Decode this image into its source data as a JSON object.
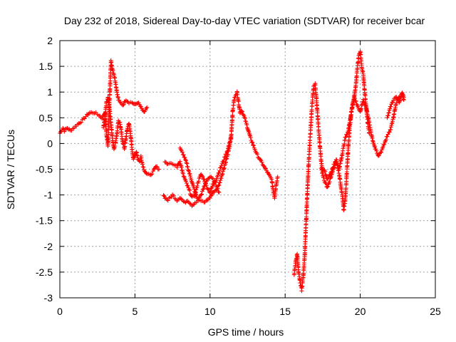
{
  "chart_data": {
    "type": "scatter",
    "title": "Day 232 of 2018, Sidereal Day-to-day VTEC variation (SDTVAR) for receiver bcar",
    "xlabel": "GPS time / hours",
    "ylabel": "SDTVAR / TECUs",
    "xlim": [
      0,
      25
    ],
    "ylim": [
      -3,
      2
    ],
    "xticks": [
      "0",
      "5",
      "10",
      "15",
      "20",
      "25"
    ],
    "yticks": [
      "2",
      "1.5",
      "1",
      "0.5",
      "0",
      "-0.5",
      "-1",
      "-1.5",
      "-2",
      "-2.5",
      "-3"
    ],
    "grid": true,
    "marker": "plus",
    "color": "#ff0000",
    "series": [
      {
        "name": "SDTVAR",
        "x": [
          0.0,
          0.2,
          0.3,
          0.5,
          0.7,
          1.5,
          1.8,
          2.0,
          2.3,
          2.6,
          2.8,
          3.0,
          3.1,
          3.2,
          3.3,
          3.4,
          3.5,
          3.6,
          3.7,
          3.8,
          3.9,
          4.0,
          4.2,
          4.4,
          4.6,
          4.8,
          5.0,
          5.2,
          5.4,
          5.6,
          5.8
        ],
        "y": [
          0.2,
          0.3,
          0.25,
          0.3,
          0.25,
          0.45,
          0.55,
          0.6,
          0.6,
          0.55,
          0.5,
          0.6,
          0.2,
          -0.05,
          0.8,
          1.6,
          1.45,
          1.35,
          1.2,
          1.0,
          0.85,
          0.8,
          0.75,
          0.85,
          0.8,
          0.8,
          0.75,
          0.8,
          0.7,
          0.6,
          0.7
        ],
        "x2": [
          2.9,
          3.0,
          3.1,
          3.2,
          3.3,
          3.4,
          3.5,
          3.6,
          3.7,
          3.8,
          3.9,
          4.0,
          4.1,
          4.2,
          4.3,
          4.4,
          4.5,
          4.6,
          4.7,
          4.8,
          4.9,
          5.0,
          5.1,
          5.2,
          5.3,
          5.4,
          5.5,
          5.6,
          5.8,
          6.0,
          6.2,
          6.4,
          6.6
        ],
        "y2": [
          0.3,
          0.5,
          0.8,
          0.9,
          0.7,
          0.4,
          0.1,
          -0.1,
          0.0,
          0.2,
          0.45,
          0.4,
          0.2,
          0.0,
          -0.1,
          0.1,
          0.3,
          0.4,
          0.2,
          -0.1,
          -0.3,
          -0.25,
          -0.15,
          -0.3,
          -0.35,
          -0.25,
          -0.4,
          -0.5,
          -0.6,
          -0.62,
          -0.55,
          -0.45,
          -0.5
        ],
        "x3": [
          6.9,
          7.0,
          7.2,
          7.5,
          7.8,
          8.0,
          8.3,
          8.5,
          8.8,
          9.0,
          9.3,
          9.6,
          9.8,
          10.0,
          10.2,
          10.4,
          10.6,
          10.8,
          11.0,
          11.2,
          11.4,
          11.5,
          11.6,
          11.7,
          11.8,
          11.9,
          12.0,
          12.1,
          12.3,
          12.5,
          12.7,
          12.9,
          13.1,
          13.3,
          13.5,
          13.7,
          13.9,
          14.1,
          14.2,
          14.3,
          14.4,
          14.5
        ],
        "y3": [
          -1.0,
          -1.05,
          -1.1,
          -1.0,
          -1.1,
          -1.05,
          -1.15,
          -1.1,
          -1.2,
          -1.15,
          -1.1,
          -1.15,
          -1.1,
          -1.05,
          -0.95,
          -0.9,
          -0.8,
          -0.6,
          -0.4,
          -0.2,
          0.1,
          0.6,
          0.85,
          0.95,
          1.0,
          0.8,
          0.6,
          0.65,
          0.5,
          0.3,
          0.1,
          -0.05,
          -0.2,
          -0.3,
          -0.4,
          -0.5,
          -0.6,
          -0.7,
          -0.9,
          -1.05,
          -0.8,
          -0.65
        ],
        "x4": [
          7.0,
          7.2,
          7.5,
          7.8,
          8.0,
          8.2,
          8.4,
          8.6,
          8.8,
          9.0,
          9.2,
          9.4,
          9.6,
          9.8,
          10.0,
          10.2,
          10.4,
          10.6,
          10.8,
          11.0,
          11.2,
          11.4
        ],
        "y4": [
          -0.35,
          -0.4,
          -0.4,
          -0.45,
          -0.35,
          -0.6,
          -0.75,
          -0.9,
          -1.05,
          -1.0,
          -0.75,
          -0.6,
          -0.7,
          -0.85,
          -0.95,
          -0.8,
          -0.7,
          -0.55,
          -0.4,
          -0.25,
          -0.1,
          0.15
        ],
        "x5": [
          8.0,
          8.2,
          8.4,
          8.6,
          8.8,
          9.0,
          9.2,
          9.4,
          9.6,
          9.8,
          10.0,
          10.2,
          10.4,
          10.6
        ],
        "y5": [
          -0.1,
          -0.2,
          -0.35,
          -0.55,
          -0.75,
          -0.95,
          -1.1,
          -1.0,
          -0.85,
          -0.7,
          -0.65,
          -0.7,
          -0.8,
          -0.95
        ],
        "x6": [
          15.6,
          15.7,
          15.8,
          15.9,
          16.0,
          16.1,
          16.2,
          16.3,
          16.4,
          16.5,
          16.6,
          16.7,
          16.8,
          16.9,
          17.0,
          17.1,
          17.2,
          17.3,
          17.4,
          17.5,
          17.6,
          17.8,
          18.0,
          18.2,
          18.4,
          18.6,
          18.7,
          18.8,
          18.9,
          19.0,
          19.1,
          19.2,
          19.3,
          19.4,
          19.5,
          19.6,
          19.7,
          19.8,
          19.9,
          20.0,
          20.1,
          20.2,
          20.3,
          20.4,
          20.5,
          20.6
        ],
        "y6": [
          -2.55,
          -2.3,
          -2.15,
          -2.5,
          -2.7,
          -2.85,
          -2.6,
          -2.2,
          -1.5,
          -0.8,
          -0.2,
          0.3,
          0.8,
          1.1,
          1.15,
          0.8,
          0.4,
          0.0,
          -0.35,
          -0.55,
          -0.5,
          -0.7,
          -0.6,
          -0.45,
          -0.3,
          -0.6,
          -0.8,
          -1.0,
          -1.3,
          -1.1,
          -0.6,
          -0.1,
          0.3,
          0.6,
          0.8,
          0.9,
          1.1,
          1.45,
          1.7,
          1.8,
          1.5,
          1.35,
          1.0,
          0.7,
          0.4,
          0.2
        ],
        "x7": [
          17.4,
          17.6,
          17.8,
          18.0,
          18.2,
          18.4,
          18.6,
          18.8,
          19.0,
          19.2,
          19.4,
          19.6,
          19.8,
          20.0,
          20.2,
          20.4,
          20.6,
          20.8,
          21.0,
          21.2,
          21.4,
          21.6,
          21.8,
          22.0,
          22.2,
          22.4,
          22.6,
          22.8,
          22.9
        ],
        "y7": [
          -0.5,
          -0.7,
          -0.85,
          -0.7,
          -0.5,
          -0.35,
          -0.5,
          -0.2,
          0.1,
          0.25,
          0.6,
          0.9,
          0.75,
          0.6,
          0.85,
          0.7,
          0.4,
          0.1,
          -0.1,
          -0.25,
          -0.15,
          0.0,
          0.15,
          0.25,
          0.5,
          0.8,
          0.9,
          0.95,
          0.85
        ],
        "x8": [
          21.8,
          22.0,
          22.2,
          22.4,
          22.6,
          22.8,
          22.9
        ],
        "y8": [
          0.5,
          0.7,
          0.85,
          0.9,
          0.8,
          1.0,
          0.9
        ]
      }
    ]
  }
}
